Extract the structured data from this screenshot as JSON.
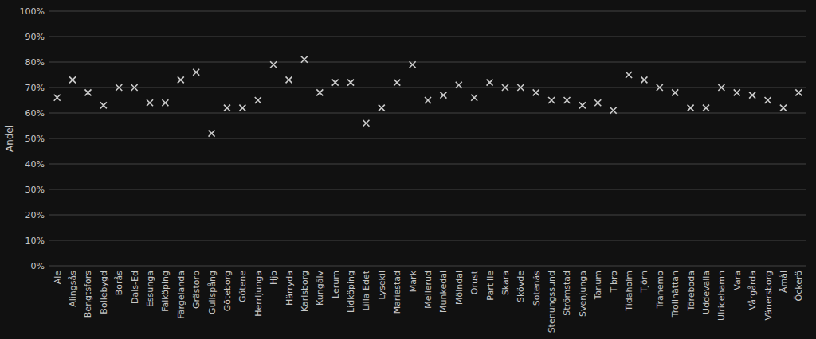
{
  "chart_data": {
    "type": "scatter",
    "ylabel": "Andel",
    "categories": [
      "Ale",
      "Alingsås",
      "Bengtsfors",
      "Bollebygd",
      "Borås",
      "Dals-Ed",
      "Essunga",
      "Falköping",
      "Färgelanda",
      "Grästorp",
      "Gullspång",
      "Göteborg",
      "Götene",
      "Herrljunga",
      "Hjo",
      "Härryda",
      "Karlsborg",
      "Kungälv",
      "Lerum",
      "Lidköping",
      "Lilla Edet",
      "Lysekil",
      "Mariestad",
      "Mark",
      "Mellerud",
      "Munkedal",
      "Mölndal",
      "Orust",
      "Partille",
      "Skara",
      "Skövde",
      "Sotenäs",
      "Stenungssund",
      "Strömstad",
      "Svenjunga",
      "Tanum",
      "Tibro",
      "Tidaholm",
      "Tjörn",
      "Tranemo",
      "Trollhättan",
      "Töreboda",
      "Uddevalla",
      "Ulricehamn",
      "Vara",
      "Vårgårda",
      "Vänersborg",
      "Åmål",
      "Öckerö"
    ],
    "values": [
      66,
      73,
      68,
      63,
      70,
      70,
      64,
      64,
      73,
      76,
      52,
      62,
      62,
      65,
      79,
      73,
      81,
      68,
      72,
      72,
      56,
      62,
      72,
      79,
      65,
      67,
      71,
      66,
      72,
      70,
      70,
      68,
      65,
      65,
      63,
      64,
      61,
      75,
      73,
      70,
      68,
      62,
      62,
      70,
      68,
      67,
      65,
      62,
      68
    ],
    "color": "#cccccc",
    "marker": "x",
    "ylim": [
      0,
      100
    ],
    "yticks": [
      {
        "value": 0,
        "label": "0%"
      },
      {
        "value": 10,
        "label": "10%"
      },
      {
        "value": 20,
        "label": "20%"
      },
      {
        "value": 30,
        "label": "30%"
      },
      {
        "value": 40,
        "label": "40%"
      },
      {
        "value": 50,
        "label": "50%"
      },
      {
        "value": 60,
        "label": "60%"
      },
      {
        "value": 70,
        "label": "70%"
      },
      {
        "value": 80,
        "label": "80%"
      },
      {
        "value": 90,
        "label": "90%"
      },
      {
        "value": 100,
        "label": "100%"
      }
    ],
    "grid": true
  }
}
